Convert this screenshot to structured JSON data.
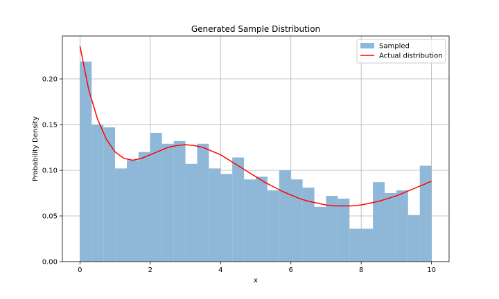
{
  "chart_data": {
    "type": "bar",
    "title": "Generated Sample Distribution",
    "xlabel": "x",
    "ylabel": "Probability Density",
    "xlim": [
      -0.5,
      10.5
    ],
    "ylim": [
      0,
      0.247
    ],
    "xticks": [
      0,
      2,
      4,
      6,
      8,
      10
    ],
    "xtick_labels": [
      "0",
      "2",
      "4",
      "6",
      "8",
      "10"
    ],
    "yticks": [
      0.0,
      0.05,
      0.1,
      0.15,
      0.2
    ],
    "ytick_labels": [
      "0.00",
      "0.05",
      "0.10",
      "0.15",
      "0.20"
    ],
    "grid": true,
    "legend_position": "top-right",
    "histogram": {
      "name": "Sampled",
      "color": "#8fb8d8",
      "bin_edges": [
        0,
        0.333,
        0.667,
        1.0,
        1.333,
        1.667,
        2.0,
        2.333,
        2.667,
        3.0,
        3.333,
        3.667,
        4.0,
        4.333,
        4.667,
        5.0,
        5.333,
        5.667,
        6.0,
        6.333,
        6.667,
        7.0,
        7.333,
        7.667,
        8.0,
        8.333,
        8.667,
        9.0,
        9.333,
        9.667,
        10.0
      ],
      "values": [
        0.219,
        0.15,
        0.147,
        0.102,
        0.111,
        0.12,
        0.141,
        0.129,
        0.132,
        0.107,
        0.129,
        0.102,
        0.096,
        0.114,
        0.09,
        0.093,
        0.078,
        0.1,
        0.09,
        0.081,
        0.06,
        0.072,
        0.069,
        0.036,
        0.036,
        0.087,
        0.075,
        0.078,
        0.051,
        0.105
      ]
    },
    "line": {
      "name": "Actual distribution",
      "color": "#ff0000",
      "x": [
        0,
        0.25,
        0.5,
        0.75,
        1.0,
        1.25,
        1.5,
        1.75,
        2.0,
        2.25,
        2.5,
        2.75,
        3.0,
        3.25,
        3.5,
        3.75,
        4.0,
        4.25,
        4.5,
        4.75,
        5.0,
        5.25,
        5.5,
        5.75,
        6.0,
        6.25,
        6.5,
        6.75,
        7.0,
        7.25,
        7.5,
        7.75,
        8.0,
        8.25,
        8.5,
        8.75,
        9.0,
        9.25,
        9.5,
        9.75,
        10.0
      ],
      "y": [
        0.236,
        0.188,
        0.156,
        0.134,
        0.12,
        0.113,
        0.111,
        0.113,
        0.117,
        0.121,
        0.125,
        0.127,
        0.128,
        0.127,
        0.125,
        0.121,
        0.117,
        0.111,
        0.105,
        0.099,
        0.093,
        0.087,
        0.082,
        0.077,
        0.073,
        0.069,
        0.066,
        0.064,
        0.062,
        0.061,
        0.061,
        0.061,
        0.062,
        0.064,
        0.066,
        0.069,
        0.072,
        0.076,
        0.08,
        0.084,
        0.088
      ]
    }
  }
}
